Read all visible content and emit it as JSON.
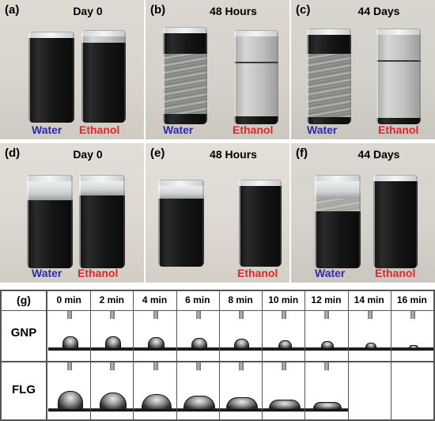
{
  "photos": [
    {
      "label": "(a)",
      "title": "Day 0",
      "left_caption": "Water",
      "right_caption": "Ethanol"
    },
    {
      "label": "(b)",
      "title": "48 Hours",
      "left_caption": "Water",
      "right_caption": "Ethanol"
    },
    {
      "label": "(c)",
      "title": "44 Days",
      "left_caption": "Water",
      "right_caption": "Ethanol"
    },
    {
      "label": "(d)",
      "title": "Day 0",
      "left_caption": "Water",
      "right_caption": "Ethanol"
    },
    {
      "label": "(e)",
      "title": "48 Hours",
      "left_caption": "",
      "right_caption": "Ethanol"
    },
    {
      "label": "(f)",
      "title": "44 Days",
      "left_caption": "Water",
      "right_caption": "Ethanol"
    }
  ],
  "grid": {
    "label": "(g)",
    "times": [
      "0 min",
      "2 min",
      "4 min",
      "6 min",
      "8 min",
      "10 min",
      "12 min",
      "14 min",
      "16 min"
    ],
    "rows": [
      {
        "name": "GNP",
        "visible_frames": 9
      },
      {
        "name": "FLG",
        "visible_frames": 7
      }
    ]
  },
  "colors": {
    "water": "#2c2ba8",
    "ethanol": "#e0282b"
  }
}
